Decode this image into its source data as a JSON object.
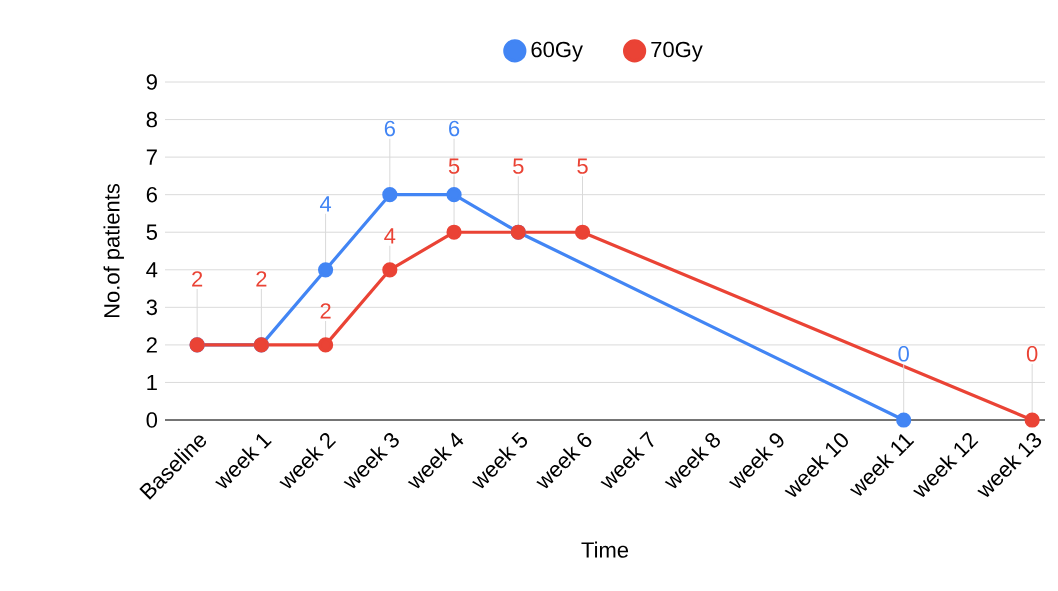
{
  "chart_data": {
    "type": "line",
    "categories": [
      "Baseline",
      "week 1",
      "week 2",
      "week 3",
      "week 4",
      "week 5",
      "week 6",
      "week 7",
      "week 8",
      "week 9",
      "week 10",
      "week 11",
      "week 12",
      "week 13"
    ],
    "series": [
      {
        "name": "60Gy",
        "color": "#4285f4",
        "values": [
          2,
          2,
          4,
          6,
          6,
          5,
          null,
          null,
          null,
          null,
          null,
          0,
          null,
          null
        ],
        "value_labels": [
          null,
          null,
          "4",
          "6",
          "6",
          null,
          null,
          null,
          null,
          null,
          null,
          "0",
          null,
          null
        ]
      },
      {
        "name": "70Gy",
        "color": "#ea4335",
        "values": [
          2,
          2,
          2,
          4,
          5,
          5,
          5,
          null,
          null,
          null,
          null,
          null,
          null,
          0
        ],
        "value_labels": [
          "2",
          "2",
          "2",
          "4",
          "5",
          "5",
          "5",
          null,
          null,
          null,
          null,
          null,
          null,
          "0"
        ]
      }
    ],
    "xlabel": "Time",
    "ylabel": "No.of patients",
    "ylim": [
      0,
      9
    ],
    "yticks": [
      0,
      1,
      2,
      3,
      4,
      5,
      6,
      7,
      8,
      9
    ],
    "grid": "y",
    "legend": "top",
    "marker": "circle",
    "line_style": "solid"
  }
}
